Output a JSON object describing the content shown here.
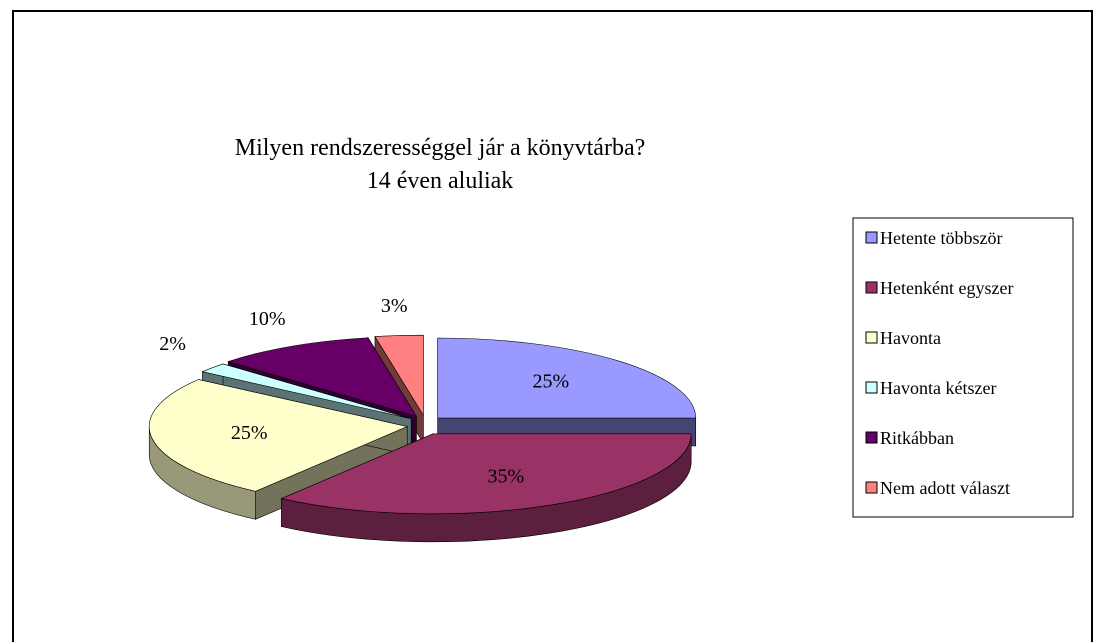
{
  "chart_data": {
    "type": "pie",
    "title": "Milyen rendszerességgel jár a könyvtárba?",
    "subtitle": "14 éven aluliak",
    "categories": [
      "Hetente többször",
      "Hetenként egyszer",
      "Havonta",
      "Havonta kétszer",
      "Ritkábban",
      "Nem adott választ"
    ],
    "values": [
      25,
      35,
      25,
      2,
      10,
      3
    ],
    "value_labels": [
      "25%",
      "35%",
      "25%",
      "2%",
      "10%",
      "3%"
    ],
    "colors": [
      "#9999ff",
      "#993366",
      "#ffffcc",
      "#ccffff",
      "#660066",
      "#ff8080"
    ],
    "legend": "right"
  }
}
